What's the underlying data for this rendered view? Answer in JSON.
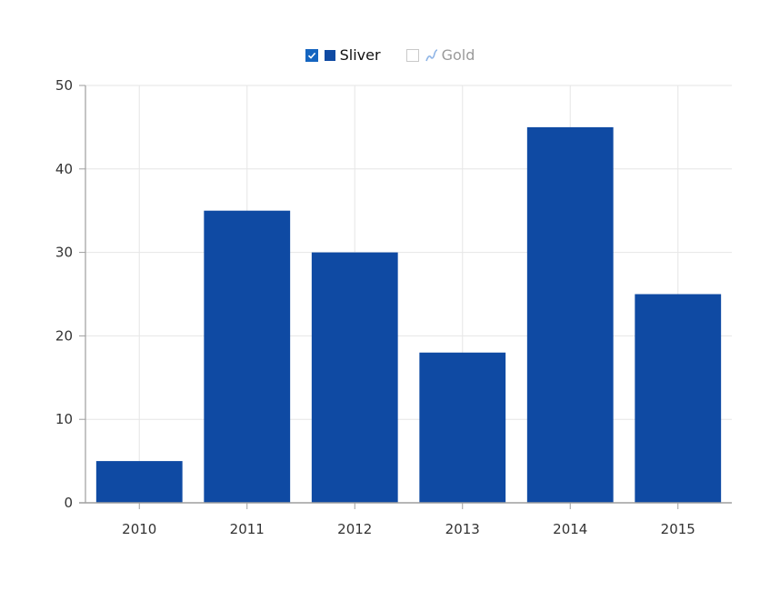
{
  "legend": {
    "items": [
      {
        "label": "Sliver",
        "checked": true,
        "icon": "bar-swatch-icon",
        "color": "#0f4aa3"
      },
      {
        "label": "Gold",
        "checked": false,
        "icon": "line-swatch-icon",
        "color": "#8fb5e6"
      }
    ]
  },
  "colors": {
    "bar": "#0f4aa3",
    "grid": "#e6e6e6",
    "axis": "#9e9e9e",
    "tick_text": "#333333"
  },
  "chart_data": {
    "type": "bar",
    "categories": [
      "2010",
      "2011",
      "2012",
      "2013",
      "2014",
      "2015"
    ],
    "series": [
      {
        "name": "Sliver",
        "values": [
          5,
          35,
          30,
          18,
          45,
          25
        ]
      }
    ],
    "ylim": [
      0,
      50
    ],
    "yticks": [
      0,
      10,
      20,
      30,
      40,
      50
    ],
    "grid": true,
    "legend_position": "top-center",
    "title": "",
    "xlabel": "",
    "ylabel": ""
  }
}
